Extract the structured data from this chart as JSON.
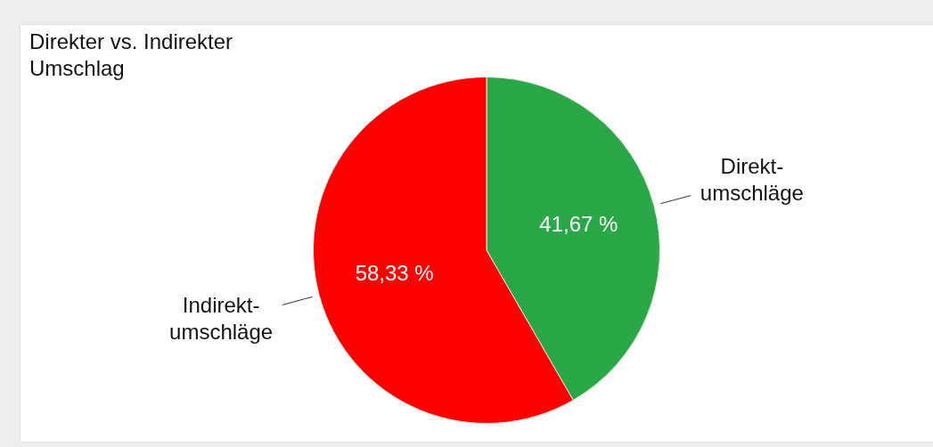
{
  "chart_data": {
    "type": "pie",
    "title": "Direkter vs. Indirekter Umschlag",
    "categories": [
      "Direkt-umschläge",
      "Indirekt-umschläge"
    ],
    "values": [
      41.67,
      58.33
    ],
    "colors": [
      "#2aa847",
      "#ff0000"
    ],
    "value_labels": [
      "41,67 %",
      "58,33 %"
    ],
    "legend": false
  }
}
